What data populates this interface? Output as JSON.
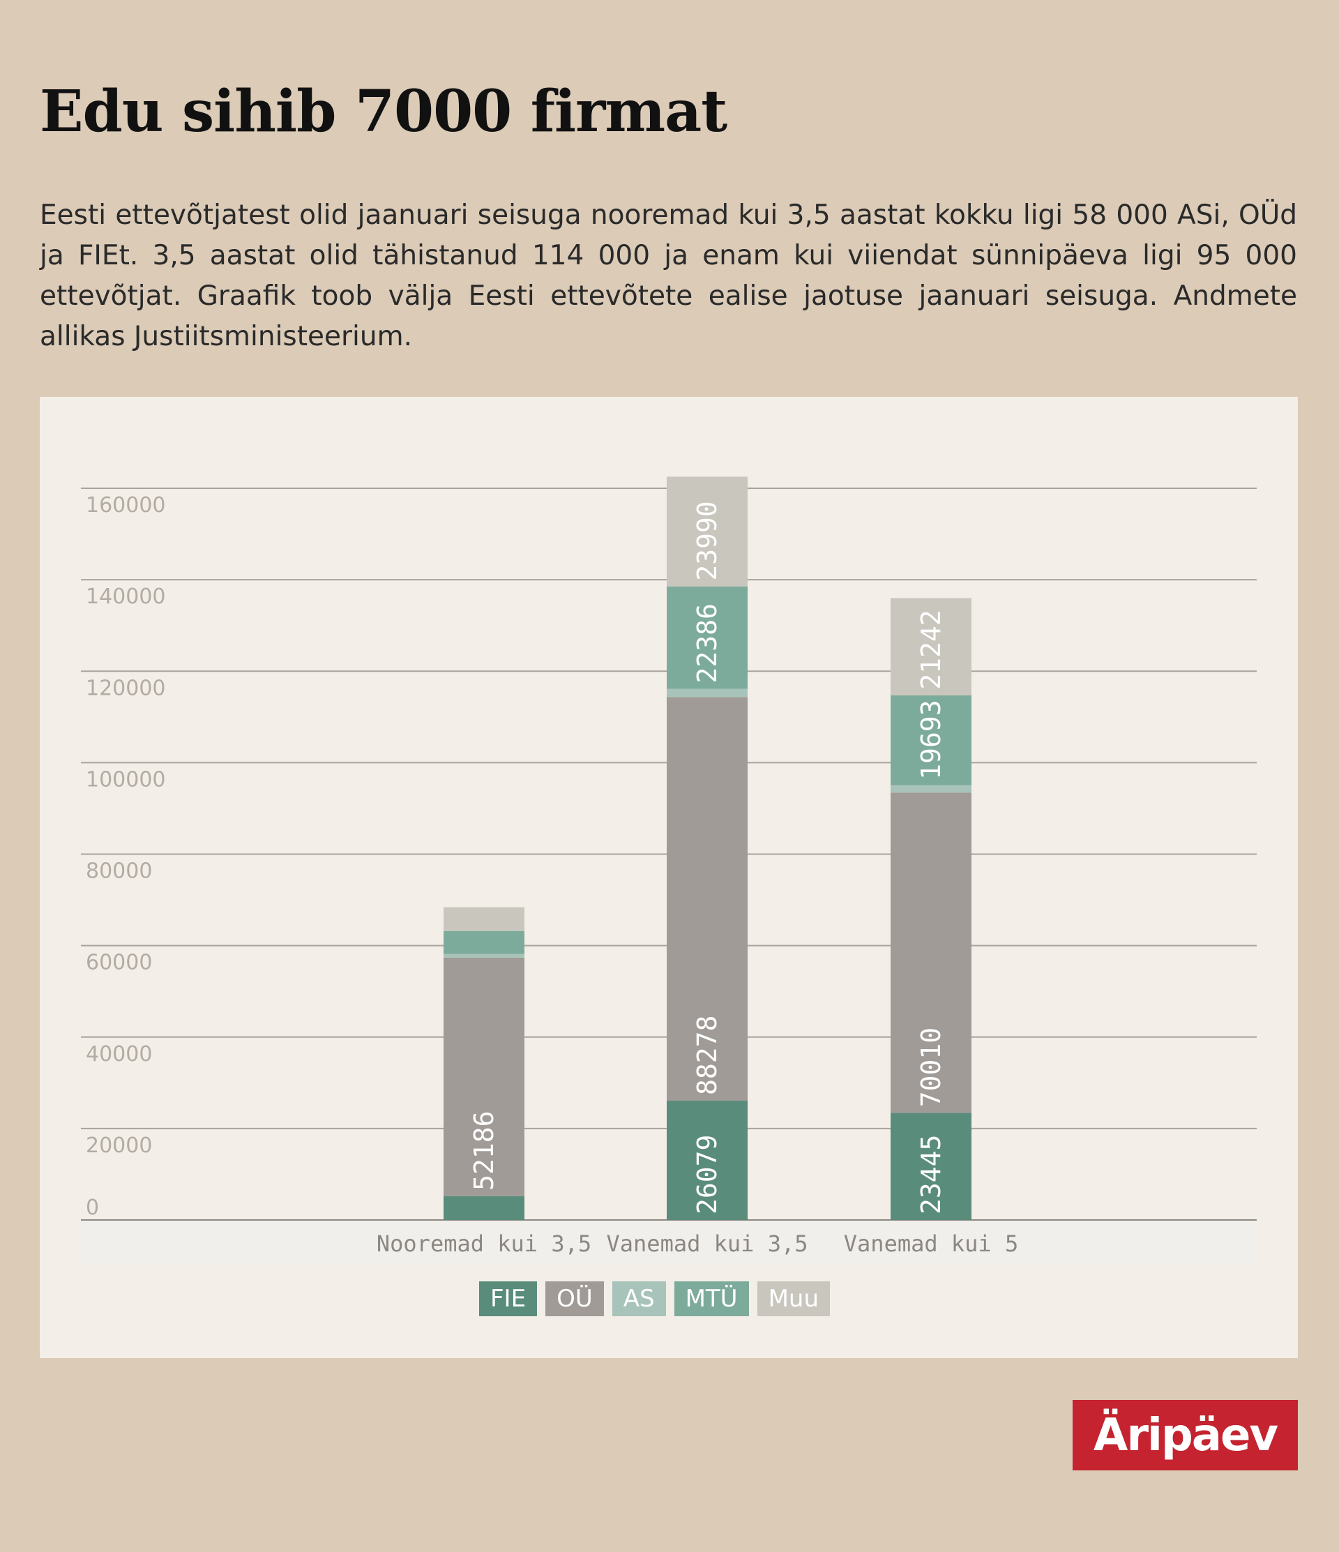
{
  "title": "Edu sihib 7000 firmat",
  "intro": "Eesti ettevõtjatest olid jaanuari seisuga nooremad kui 3,5 aastat kokku ligi 58 000 ASi, OÜd ja FIEt. 3,5 aastat olid tähistanud 114 000 ja enam kui viiendat sünnipäeva ligi 95 000 ettevõtjat. Graafik toob välja Eesti ettevõtete ealise jaotuse jaanuari seisuga. Andmete allikas Justiitsministeerium.",
  "logo": "Äripäev",
  "colors": {
    "background": "#dbcbb7",
    "panel": "#f3efe8",
    "FIE": "#5a8c7c",
    "OÜ": "#a09b97",
    "AS": "#a8c3ba",
    "MTÜ": "#7dab9b",
    "Muu": "#c8c6bd",
    "logo": "#c4232f"
  },
  "chart_data": {
    "type": "bar",
    "stacked": true,
    "orientation": "vertical",
    "title": "",
    "xlabel": "",
    "ylabel": "",
    "ylim": [
      0,
      160000
    ],
    "yticks": [
      0,
      20000,
      40000,
      60000,
      80000,
      100000,
      120000,
      140000,
      160000
    ],
    "grid": true,
    "legend_position": "bottom-center",
    "categories": [
      "Nooremad kui 3,5",
      "Vanemad kui 3,5",
      "Vanemad kui 5"
    ],
    "series": [
      {
        "name": "FIE",
        "values": [
          5200,
          26079,
          23445
        ],
        "labels": [
          "",
          "26079",
          "23445"
        ]
      },
      {
        "name": "OÜ",
        "values": [
          52186,
          88278,
          70010
        ],
        "labels": [
          "52186",
          "88278",
          "70010"
        ]
      },
      {
        "name": "AS",
        "values": [
          800,
          1800,
          1600
        ],
        "labels": [
          "",
          "",
          ""
        ]
      },
      {
        "name": "MTÜ",
        "values": [
          5000,
          22386,
          19693
        ],
        "labels": [
          "",
          "22386",
          "19693"
        ]
      },
      {
        "name": "Muu",
        "values": [
          5200,
          23990,
          21242
        ],
        "labels": [
          "",
          "23990",
          "21242"
        ]
      }
    ]
  }
}
